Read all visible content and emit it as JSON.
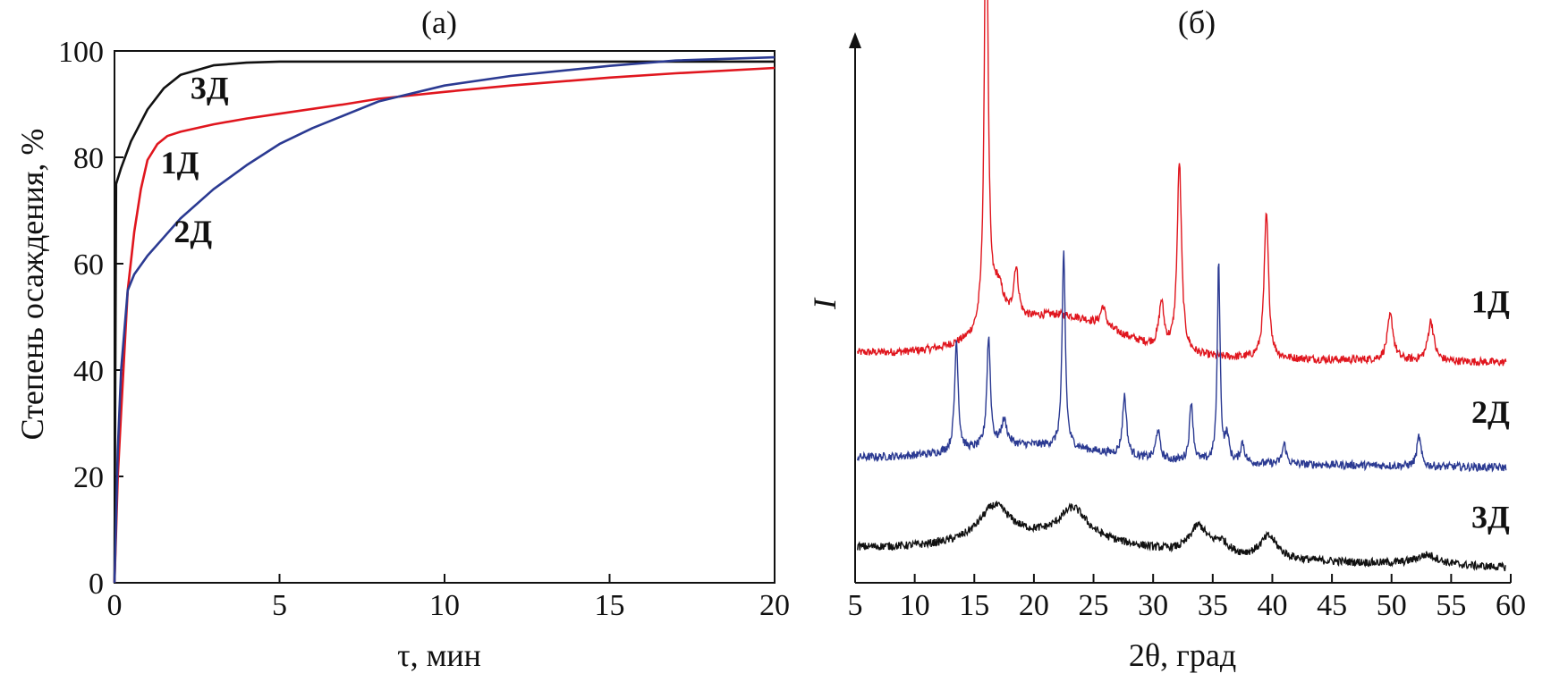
{
  "chart_data": [
    {
      "type": "line",
      "panel_label": "(а)",
      "xlabel": "τ, мин",
      "ylabel": "Степень осаждения, %",
      "xlim": [
        0,
        20
      ],
      "ylim": [
        0,
        100
      ],
      "xticks": [
        0,
        5,
        10,
        15,
        20
      ],
      "yticks": [
        0,
        20,
        40,
        60,
        80,
        100
      ],
      "grid": false,
      "series": [
        {
          "name": "3Д",
          "color": "#111111",
          "x": [
            0,
            0.05,
            0.2,
            0.5,
            1,
            1.5,
            2,
            3,
            4,
            5,
            7,
            10,
            15,
            20
          ],
          "values": [
            0,
            75,
            78,
            83,
            89,
            93,
            95.5,
            97.3,
            97.8,
            98,
            98,
            98,
            98,
            98
          ]
        },
        {
          "name": "1Д",
          "color": "#e0161e",
          "x": [
            0,
            0.1,
            0.2,
            0.4,
            0.6,
            0.8,
            1,
            1.3,
            1.6,
            2,
            3,
            4,
            5,
            7,
            8,
            10,
            12,
            15,
            17,
            20
          ],
          "values": [
            0,
            20,
            32,
            55,
            66,
            74,
            79.5,
            82.5,
            84,
            84.8,
            86.2,
            87.3,
            88.2,
            90,
            91,
            92.3,
            93.5,
            95,
            95.8,
            96.8
          ]
        },
        {
          "name": "2Д",
          "color": "#2b3a92",
          "x": [
            0,
            0.1,
            0.2,
            0.4,
            0.6,
            1,
            1.5,
            2,
            3,
            4,
            5,
            6,
            8,
            10,
            12,
            15,
            17,
            20
          ],
          "values": [
            0,
            25,
            40,
            55,
            58,
            61.5,
            65,
            68.5,
            74,
            78.5,
            82.5,
            85.5,
            90.5,
            93.5,
            95.3,
            97.2,
            98.2,
            98.8
          ]
        }
      ],
      "curve_labels": [
        {
          "text": "3Д",
          "color": "#111111",
          "x": 2.3,
          "y": 91
        },
        {
          "text": "1Д",
          "color": "#e0161e",
          "x": 1.4,
          "y": 77
        },
        {
          "text": "2Д",
          "color": "#2b3a92",
          "x": 1.8,
          "y": 64
        }
      ]
    },
    {
      "type": "line",
      "panel_label": "(б)",
      "xlabel": "2θ, град",
      "ylabel": "I",
      "xlim": [
        5,
        60
      ],
      "xticks": [
        5,
        10,
        15,
        20,
        25,
        30,
        35,
        40,
        45,
        50,
        55,
        60
      ],
      "grid": false,
      "y_axis_arrow": true,
      "series": [
        {
          "name": "1Д",
          "color": "#e0161e",
          "baseline_start": 46,
          "baseline_end": 44,
          "peaks": [
            {
              "x": 16.0,
              "h": 94,
              "w": 0.18
            },
            {
              "x": 17.0,
              "h": 8,
              "w": 0.6
            },
            {
              "x": 18.5,
              "h": 10,
              "w": 0.25
            },
            {
              "x": 25.8,
              "h": 4,
              "w": 0.25
            },
            {
              "x": 30.7,
              "h": 9,
              "w": 0.25
            },
            {
              "x": 32.2,
              "h": 38,
              "w": 0.22
            },
            {
              "x": 39.5,
              "h": 29,
              "w": 0.22
            },
            {
              "x": 49.9,
              "h": 9,
              "w": 0.3
            },
            {
              "x": 53.3,
              "h": 8,
              "w": 0.3
            }
          ],
          "hump": {
            "x": 22,
            "h": 8,
            "w": 7
          },
          "label": {
            "text": "1Д",
            "x": 58.3,
            "y": 54
          }
        },
        {
          "name": "2Д",
          "color": "#2b3a92",
          "baseline_start": 25,
          "baseline_end": 23,
          "peaks": [
            {
              "x": 13.5,
              "h": 22,
              "w": 0.18
            },
            {
              "x": 16.2,
              "h": 22,
              "w": 0.18
            },
            {
              "x": 17.5,
              "h": 5,
              "w": 0.3
            },
            {
              "x": 22.5,
              "h": 39,
              "w": 0.16
            },
            {
              "x": 27.6,
              "h": 12,
              "w": 0.2
            },
            {
              "x": 30.4,
              "h": 6,
              "w": 0.2
            },
            {
              "x": 33.2,
              "h": 12,
              "w": 0.18
            },
            {
              "x": 35.5,
              "h": 40,
              "w": 0.14
            },
            {
              "x": 36.2,
              "h": 5,
              "w": 0.2
            },
            {
              "x": 37.5,
              "h": 4,
              "w": 0.2
            },
            {
              "x": 41.0,
              "h": 4,
              "w": 0.2
            },
            {
              "x": 52.3,
              "h": 6,
              "w": 0.2
            }
          ],
          "hump": {
            "x": 20,
            "h": 3,
            "w": 8
          },
          "label": {
            "text": "2Д",
            "x": 58.3,
            "y": 32
          }
        },
        {
          "name": "3Д",
          "color": "#111111",
          "baseline_start": 7,
          "baseline_end": 3,
          "peaks": [
            {
              "x": 16.7,
              "h": 7,
              "w": 1.6
            },
            {
              "x": 23.3,
              "h": 6,
              "w": 1.4
            },
            {
              "x": 33.8,
              "h": 5.5,
              "w": 0.9
            },
            {
              "x": 35.7,
              "h": 2.5,
              "w": 0.8
            },
            {
              "x": 39.7,
              "h": 4.5,
              "w": 0.9
            },
            {
              "x": 53.0,
              "h": 2,
              "w": 1.2
            }
          ],
          "hump": {
            "x": 22,
            "h": 3,
            "w": 9
          },
          "label": {
            "text": "3Д",
            "x": 58.3,
            "y": 11
          }
        }
      ]
    }
  ]
}
